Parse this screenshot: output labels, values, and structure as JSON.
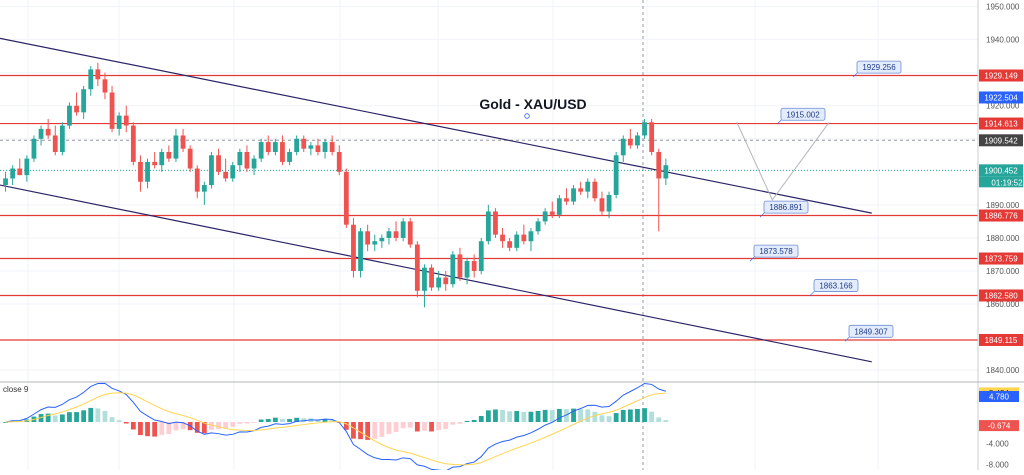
{
  "chart_data": {
    "type": "candlestick",
    "title": "Gold - XAU/USD",
    "y_axis": {
      "range": [
        1837,
        1952
      ],
      "ticks": [
        "1950.000",
        "1940.000",
        "1930.000",
        "1920.000",
        "1910.000",
        "1890.000",
        "1880.000",
        "1870.000",
        "1860.000",
        "1840.000"
      ]
    },
    "horizontal_levels": [
      {
        "value": 1929.149,
        "label": "1929.149",
        "callout": "1929.256"
      },
      {
        "value": 1914.613,
        "label": "1914.613",
        "callout": "1915.002"
      },
      {
        "value": 1886.776,
        "label": "1886.776",
        "callout": "1886.891"
      },
      {
        "value": 1873.759,
        "label": "1873.759",
        "callout": "1873.578"
      },
      {
        "value": 1862.58,
        "label": "1862.580",
        "callout": "1863.166"
      },
      {
        "value": 1849.115,
        "label": "1849.115",
        "callout": "1849.307"
      }
    ],
    "price_markers": [
      {
        "value": 1922.504,
        "label": "1922.504",
        "color": "#2962ff"
      },
      {
        "value": 1909.542,
        "label": "1909.542",
        "color": "#444444"
      },
      {
        "value": 1900.452,
        "label": "1900.452",
        "color": "#26a69a"
      }
    ],
    "countdown": "01:19:52",
    "channel_lines": [
      {
        "from": [
          0,
          1940.4
        ],
        "to": [
          122,
          1887.5
        ]
      },
      {
        "from": [
          0,
          1896.0
        ],
        "to": [
          122,
          1842.5
        ]
      }
    ],
    "projection": [
      [
        103,
        1915.0
      ],
      [
        108,
        1891.5
      ],
      [
        116,
        1915.0
      ]
    ],
    "candles": [
      [
        1896,
        1900,
        1894,
        1898
      ],
      [
        1898,
        1902,
        1896,
        1901
      ],
      [
        1901,
        1904,
        1899,
        1899
      ],
      [
        1899,
        1905,
        1897,
        1904
      ],
      [
        1904,
        1911,
        1903,
        1910
      ],
      [
        1910,
        1914,
        1908,
        1913
      ],
      [
        1913,
        1916,
        1910,
        1911
      ],
      [
        1911,
        1914,
        1905,
        1906
      ],
      [
        1906,
        1915,
        1905,
        1914
      ],
      [
        1914,
        1921,
        1913,
        1920
      ],
      [
        1920,
        1924,
        1917,
        1918
      ],
      [
        1918,
        1926,
        1916,
        1925
      ],
      [
        1925,
        1932,
        1923,
        1931
      ],
      [
        1931,
        1933,
        1926,
        1928
      ],
      [
        1928,
        1930,
        1922,
        1924
      ],
      [
        1924,
        1926,
        1912,
        1913
      ],
      [
        1913,
        1918,
        1911,
        1917
      ],
      [
        1917,
        1920,
        1912,
        1914
      ],
      [
        1914,
        1915,
        1902,
        1903
      ],
      [
        1903,
        1905,
        1894,
        1897
      ],
      [
        1897,
        1904,
        1895,
        1903
      ],
      [
        1903,
        1906,
        1901,
        1902
      ],
      [
        1902,
        1907,
        1900,
        1906
      ],
      [
        1906,
        1908,
        1903,
        1904
      ],
      [
        1904,
        1913,
        1903,
        1911
      ],
      [
        1911,
        1913,
        1906,
        1907
      ],
      [
        1907,
        1908,
        1900,
        1901
      ],
      [
        1901,
        1902,
        1892,
        1894
      ],
      [
        1894,
        1897,
        1890,
        1896
      ],
      [
        1896,
        1906,
        1895,
        1905
      ],
      [
        1905,
        1907,
        1899,
        1900
      ],
      [
        1900,
        1904,
        1897,
        1898
      ],
      [
        1898,
        1903,
        1897,
        1902
      ],
      [
        1902,
        1907,
        1900,
        1906
      ],
      [
        1906,
        1908,
        1900,
        1901
      ],
      [
        1901,
        1905,
        1899,
        1904
      ],
      [
        1904,
        1910,
        1903,
        1909
      ],
      [
        1909,
        1911,
        1905,
        1906
      ],
      [
        1906,
        1910,
        1905,
        1909
      ],
      [
        1909,
        1911,
        1902,
        1903
      ],
      [
        1903,
        1907,
        1902,
        1906
      ],
      [
        1906,
        1911,
        1905,
        1910
      ],
      [
        1910,
        1911,
        1906,
        1907
      ],
      [
        1907,
        1909,
        1905,
        1908
      ],
      [
        1908,
        1910,
        1905,
        1906
      ],
      [
        1906,
        1910,
        1904,
        1909
      ],
      [
        1909,
        1911,
        1905,
        1906
      ],
      [
        1906,
        1908,
        1899,
        1900
      ],
      [
        1900,
        1901,
        1883,
        1884
      ],
      [
        1884,
        1886,
        1868,
        1870
      ],
      [
        1870,
        1883,
        1868,
        1882
      ],
      [
        1882,
        1884,
        1876,
        1878
      ],
      [
        1878,
        1881,
        1876,
        1879
      ],
      [
        1879,
        1881,
        1877,
        1880
      ],
      [
        1880,
        1883,
        1878,
        1882
      ],
      [
        1882,
        1885,
        1879,
        1880
      ],
      [
        1880,
        1886,
        1879,
        1885
      ],
      [
        1885,
        1886,
        1877,
        1878
      ],
      [
        1878,
        1879,
        1862,
        1864
      ],
      [
        1864,
        1872,
        1859,
        1871
      ],
      [
        1871,
        1872,
        1864,
        1865
      ],
      [
        1865,
        1870,
        1864,
        1868
      ],
      [
        1868,
        1870,
        1864,
        1866
      ],
      [
        1866,
        1876,
        1865,
        1875
      ],
      [
        1875,
        1877,
        1867,
        1868
      ],
      [
        1868,
        1874,
        1866,
        1873
      ],
      [
        1873,
        1875,
        1868,
        1870
      ],
      [
        1870,
        1880,
        1869,
        1879
      ],
      [
        1879,
        1890,
        1878,
        1888
      ],
      [
        1888,
        1889,
        1880,
        1881
      ],
      [
        1881,
        1883,
        1877,
        1879
      ],
      [
        1879,
        1880,
        1876,
        1877
      ],
      [
        1877,
        1882,
        1876,
        1881
      ],
      [
        1881,
        1884,
        1878,
        1879
      ],
      [
        1879,
        1883,
        1876,
        1882
      ],
      [
        1882,
        1886,
        1881,
        1885
      ],
      [
        1885,
        1889,
        1884,
        1888
      ],
      [
        1888,
        1891,
        1886,
        1887
      ],
      [
        1887,
        1893,
        1886,
        1892
      ],
      [
        1892,
        1895,
        1890,
        1891
      ],
      [
        1891,
        1896,
        1890,
        1895
      ],
      [
        1895,
        1897,
        1893,
        1894
      ],
      [
        1894,
        1898,
        1892,
        1897
      ],
      [
        1897,
        1898,
        1891,
        1892
      ],
      [
        1892,
        1894,
        1887,
        1888
      ],
      [
        1888,
        1894,
        1886,
        1893
      ],
      [
        1893,
        1906,
        1892,
        1905
      ],
      [
        1905,
        1911,
        1903,
        1910
      ],
      [
        1910,
        1913,
        1907,
        1908
      ],
      [
        1908,
        1912,
        1907,
        1911
      ],
      [
        1911,
        1916,
        1910,
        1915
      ],
      [
        1915,
        1916,
        1905,
        1906
      ],
      [
        1906,
        1907,
        1882,
        1898
      ],
      [
        1898,
        1904,
        1896,
        1902
      ]
    ],
    "macd_panel": {
      "label": "close 9",
      "y_axis": {
        "range": [
          -9,
          7.5
        ],
        "ticks": [
          "-4.000",
          "-8.000"
        ]
      },
      "markers": [
        {
          "value": 5.454,
          "label": "5.454",
          "color": "#ffd54f"
        },
        {
          "value": 4.78,
          "label": "4.780",
          "color": "#2962ff"
        },
        {
          "value": -0.674,
          "label": "-0.674",
          "color": "#ef5350"
        }
      ]
    }
  }
}
